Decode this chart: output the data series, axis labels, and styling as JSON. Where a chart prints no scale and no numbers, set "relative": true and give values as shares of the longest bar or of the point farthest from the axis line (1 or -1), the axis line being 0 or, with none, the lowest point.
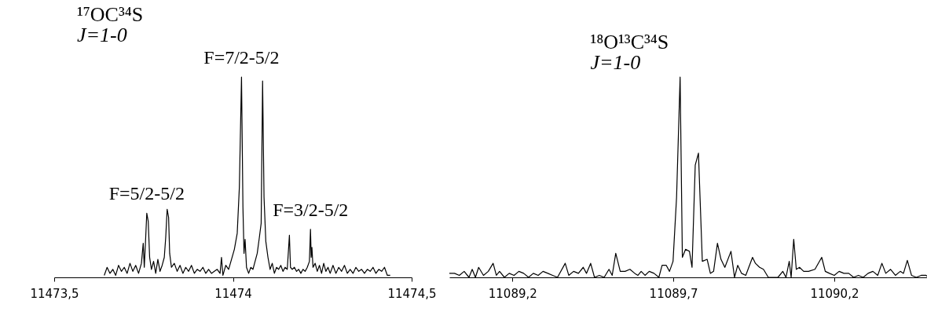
{
  "chart_data": [
    {
      "type": "line",
      "title": "¹⁷OC³⁴S",
      "subtitle": "J=1-0",
      "relative": true,
      "xlim": [
        11473.5,
        11474.5
      ],
      "xticks": [
        {
          "value": 11473.5,
          "label": "11473,5"
        },
        11474,
        {
          "value": 11474.5,
          "label": "11474,5"
        }
      ],
      "annotations": [
        {
          "text": "F=5/2-5/2",
          "x": 11473.759,
          "y": 0.32
        },
        {
          "text": "F=7/2-5/2",
          "x": 11474.024,
          "y": 1.0
        },
        {
          "text": "F=3/2-5/2",
          "x": 11474.217,
          "y": 0.24
        }
      ],
      "x": [
        11473.64,
        11473.648,
        11473.656,
        11473.664,
        11473.672,
        11473.68,
        11473.688,
        11473.696,
        11473.704,
        11473.712,
        11473.72,
        11473.728,
        11473.736,
        11473.744,
        11473.749,
        11473.752,
        11473.756,
        11473.759,
        11473.763,
        11473.767,
        11473.772,
        11473.778,
        11473.784,
        11473.79,
        11473.796,
        11473.802,
        11473.808,
        11473.812,
        11473.816,
        11473.82,
        11473.823,
        11473.828,
        11473.836,
        11473.844,
        11473.852,
        11473.86,
        11473.868,
        11473.876,
        11473.884,
        11473.892,
        11473.9,
        11473.908,
        11473.916,
        11473.924,
        11473.932,
        11473.94,
        11473.948,
        11473.956,
        11473.964,
        11473.968,
        11473.972,
        11473.98,
        11473.988,
        11473.996,
        11474.004,
        11474.012,
        11474.018,
        11474.024,
        11474.028,
        11474.031,
        11474.034,
        11474.038,
        11474.044,
        11474.05,
        11474.056,
        11474.062,
        11474.068,
        11474.074,
        11474.079,
        11474.083,
        11474.087,
        11474.092,
        11474.098,
        11474.104,
        11474.11,
        11474.116,
        11474.122,
        11474.128,
        11474.134,
        11474.14,
        11474.146,
        11474.152,
        11474.158,
        11474.161,
        11474.166,
        11474.172,
        11474.178,
        11474.184,
        11474.19,
        11474.196,
        11474.202,
        11474.208,
        11474.214,
        11474.217,
        11474.219,
        11474.221,
        11474.224,
        11474.23,
        11474.236,
        11474.242,
        11474.248,
        11474.254,
        11474.26,
        11474.266,
        11474.272,
        11474.28,
        11474.288,
        11474.296,
        11474.304,
        11474.312,
        11474.32,
        11474.328,
        11474.336,
        11474.344,
        11474.352,
        11474.36,
        11474.368,
        11474.376,
        11474.384,
        11474.392,
        11474.4,
        11474.408,
        11474.416,
        11474.424,
        11474.432,
        11474.44
      ],
      "series": [
        {
          "color": "#000000",
          "values": [
            0.01,
            0.05,
            0.02,
            0.04,
            0.01,
            0.06,
            0.03,
            0.05,
            0.02,
            0.07,
            0.03,
            0.06,
            0.02,
            0.07,
            0.17,
            0.05,
            0.2,
            0.32,
            0.28,
            0.1,
            0.04,
            0.08,
            0.02,
            0.09,
            0.03,
            0.06,
            0.1,
            0.2,
            0.34,
            0.3,
            0.12,
            0.05,
            0.07,
            0.03,
            0.06,
            0.02,
            0.05,
            0.03,
            0.06,
            0.02,
            0.04,
            0.03,
            0.05,
            0.02,
            0.04,
            0.02,
            0.03,
            0.04,
            0.02,
            0.1,
            0.01,
            0.06,
            0.04,
            0.09,
            0.14,
            0.22,
            0.45,
            1.0,
            0.35,
            0.12,
            0.19,
            0.05,
            0.02,
            0.05,
            0.04,
            0.08,
            0.12,
            0.2,
            0.27,
            0.98,
            0.4,
            0.18,
            0.1,
            0.04,
            0.07,
            0.02,
            0.05,
            0.04,
            0.06,
            0.03,
            0.05,
            0.04,
            0.21,
            0.05,
            0.04,
            0.05,
            0.03,
            0.04,
            0.02,
            0.04,
            0.03,
            0.05,
            0.08,
            0.24,
            0.1,
            0.15,
            0.05,
            0.07,
            0.03,
            0.06,
            0.02,
            0.07,
            0.03,
            0.05,
            0.02,
            0.06,
            0.02,
            0.05,
            0.03,
            0.06,
            0.02,
            0.04,
            0.02,
            0.05,
            0.03,
            0.04,
            0.02,
            0.04,
            0.03,
            0.05,
            0.02,
            0.04,
            0.03,
            0.05,
            0.01,
            0.01
          ]
        }
      ]
    },
    {
      "type": "line",
      "title": "¹⁸O¹³C³⁴S",
      "subtitle": "J=1-0",
      "relative": true,
      "xlim": [
        11089.004,
        11090.493
      ],
      "xticks": [
        {
          "value": 11089.2,
          "label": "11089,2"
        },
        {
          "value": 11089.7,
          "label": "11089,7"
        },
        {
          "value": 11090.2,
          "label": "11090,2"
        }
      ],
      "x": [
        11089.004,
        11089.02,
        11089.035,
        11089.05,
        11089.065,
        11089.075,
        11089.085,
        11089.095,
        11089.11,
        11089.125,
        11089.14,
        11089.15,
        11089.16,
        11089.175,
        11089.19,
        11089.205,
        11089.22,
        11089.235,
        11089.25,
        11089.265,
        11089.28,
        11089.295,
        11089.31,
        11089.325,
        11089.34,
        11089.364,
        11089.375,
        11089.39,
        11089.405,
        11089.42,
        11089.43,
        11089.443,
        11089.455,
        11089.47,
        11089.485,
        11089.5,
        11089.51,
        11089.521,
        11089.535,
        11089.55,
        11089.565,
        11089.58,
        11089.59,
        11089.6,
        11089.612,
        11089.625,
        11089.64,
        11089.655,
        11089.665,
        11089.678,
        11089.688,
        11089.699,
        11089.71,
        11089.721,
        11089.728,
        11089.738,
        11089.75,
        11089.758,
        11089.768,
        11089.778,
        11089.79,
        11089.805,
        11089.815,
        11089.825,
        11089.837,
        11089.848,
        11089.86,
        11089.879,
        11089.89,
        11089.9,
        11089.912,
        11089.925,
        11089.946,
        11089.955,
        11089.968,
        11089.98,
        11089.995,
        11090.01,
        11090.025,
        11090.04,
        11090.05,
        11090.06,
        11090.066,
        11090.074,
        11090.082,
        11090.092,
        11090.105,
        11090.12,
        11090.14,
        11090.161,
        11090.172,
        11090.185,
        11090.2,
        11090.215,
        11090.23,
        11090.245,
        11090.26,
        11090.275,
        11090.29,
        11090.305,
        11090.32,
        11090.335,
        11090.348,
        11090.36,
        11090.375,
        11090.39,
        11090.405,
        11090.415,
        11090.427,
        11090.44,
        11090.455,
        11090.47,
        11090.485,
        11090.493
      ],
      "series": [
        {
          "color": "#000000",
          "values": [
            0.02,
            0.02,
            0.01,
            0.03,
            0.0,
            0.04,
            0.0,
            0.05,
            0.01,
            0.03,
            0.07,
            0.01,
            0.03,
            0.0,
            0.02,
            0.01,
            0.03,
            0.02,
            0.0,
            0.02,
            0.01,
            0.03,
            0.02,
            0.01,
            0.0,
            0.07,
            0.01,
            0.03,
            0.02,
            0.05,
            0.02,
            0.07,
            0.0,
            0.01,
            0.0,
            0.04,
            0.01,
            0.12,
            0.03,
            0.03,
            0.04,
            0.02,
            0.01,
            0.03,
            0.01,
            0.03,
            0.02,
            0.0,
            0.06,
            0.06,
            0.03,
            0.08,
            0.4,
            1.0,
            0.1,
            0.14,
            0.13,
            0.05,
            0.56,
            0.62,
            0.08,
            0.09,
            0.02,
            0.03,
            0.17,
            0.09,
            0.05,
            0.13,
            0.0,
            0.06,
            0.02,
            0.01,
            0.1,
            0.07,
            0.05,
            0.04,
            0.0,
            0.0,
            0.0,
            0.03,
            0.0,
            0.08,
            0.0,
            0.19,
            0.04,
            0.05,
            0.03,
            0.03,
            0.04,
            0.1,
            0.03,
            0.02,
            0.01,
            0.03,
            0.02,
            0.02,
            0.0,
            0.01,
            0.0,
            0.02,
            0.03,
            0.01,
            0.07,
            0.02,
            0.04,
            0.01,
            0.03,
            0.02,
            0.085,
            0.01,
            0.0,
            0.01,
            0.01,
            0.0
          ]
        }
      ]
    }
  ]
}
